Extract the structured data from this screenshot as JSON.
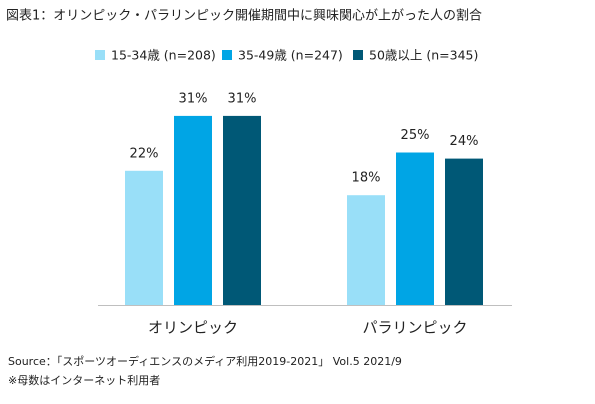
{
  "chart_data": {
    "type": "bar",
    "title": "図表1：オリンピック・パラリンピック開催期間中に興味関心が上がった人の割合",
    "categories": [
      "オリンピック",
      "パラリンピック"
    ],
    "series": [
      {
        "name": "15-34歳 (n=208)",
        "color": "#99dff8",
        "values": [
          22,
          18
        ],
        "value_labels": [
          "22%",
          "18%"
        ]
      },
      {
        "name": "35-49歳 (n=247)",
        "color": "#00a5e5",
        "values": [
          31,
          25
        ],
        "value_labels": [
          "31%",
          "25%"
        ]
      },
      {
        "name": "50歳以上 (n=345)",
        "color": "#005876",
        "values": [
          31,
          24
        ],
        "value_labels": [
          "31%",
          "24%"
        ]
      }
    ],
    "legend": "top",
    "notes": [
      "Source：「スポーツオーディエンスのメディア利用2019-2021」 Vol.5 2021/9",
      "※母数はインターネット利用者"
    ]
  }
}
